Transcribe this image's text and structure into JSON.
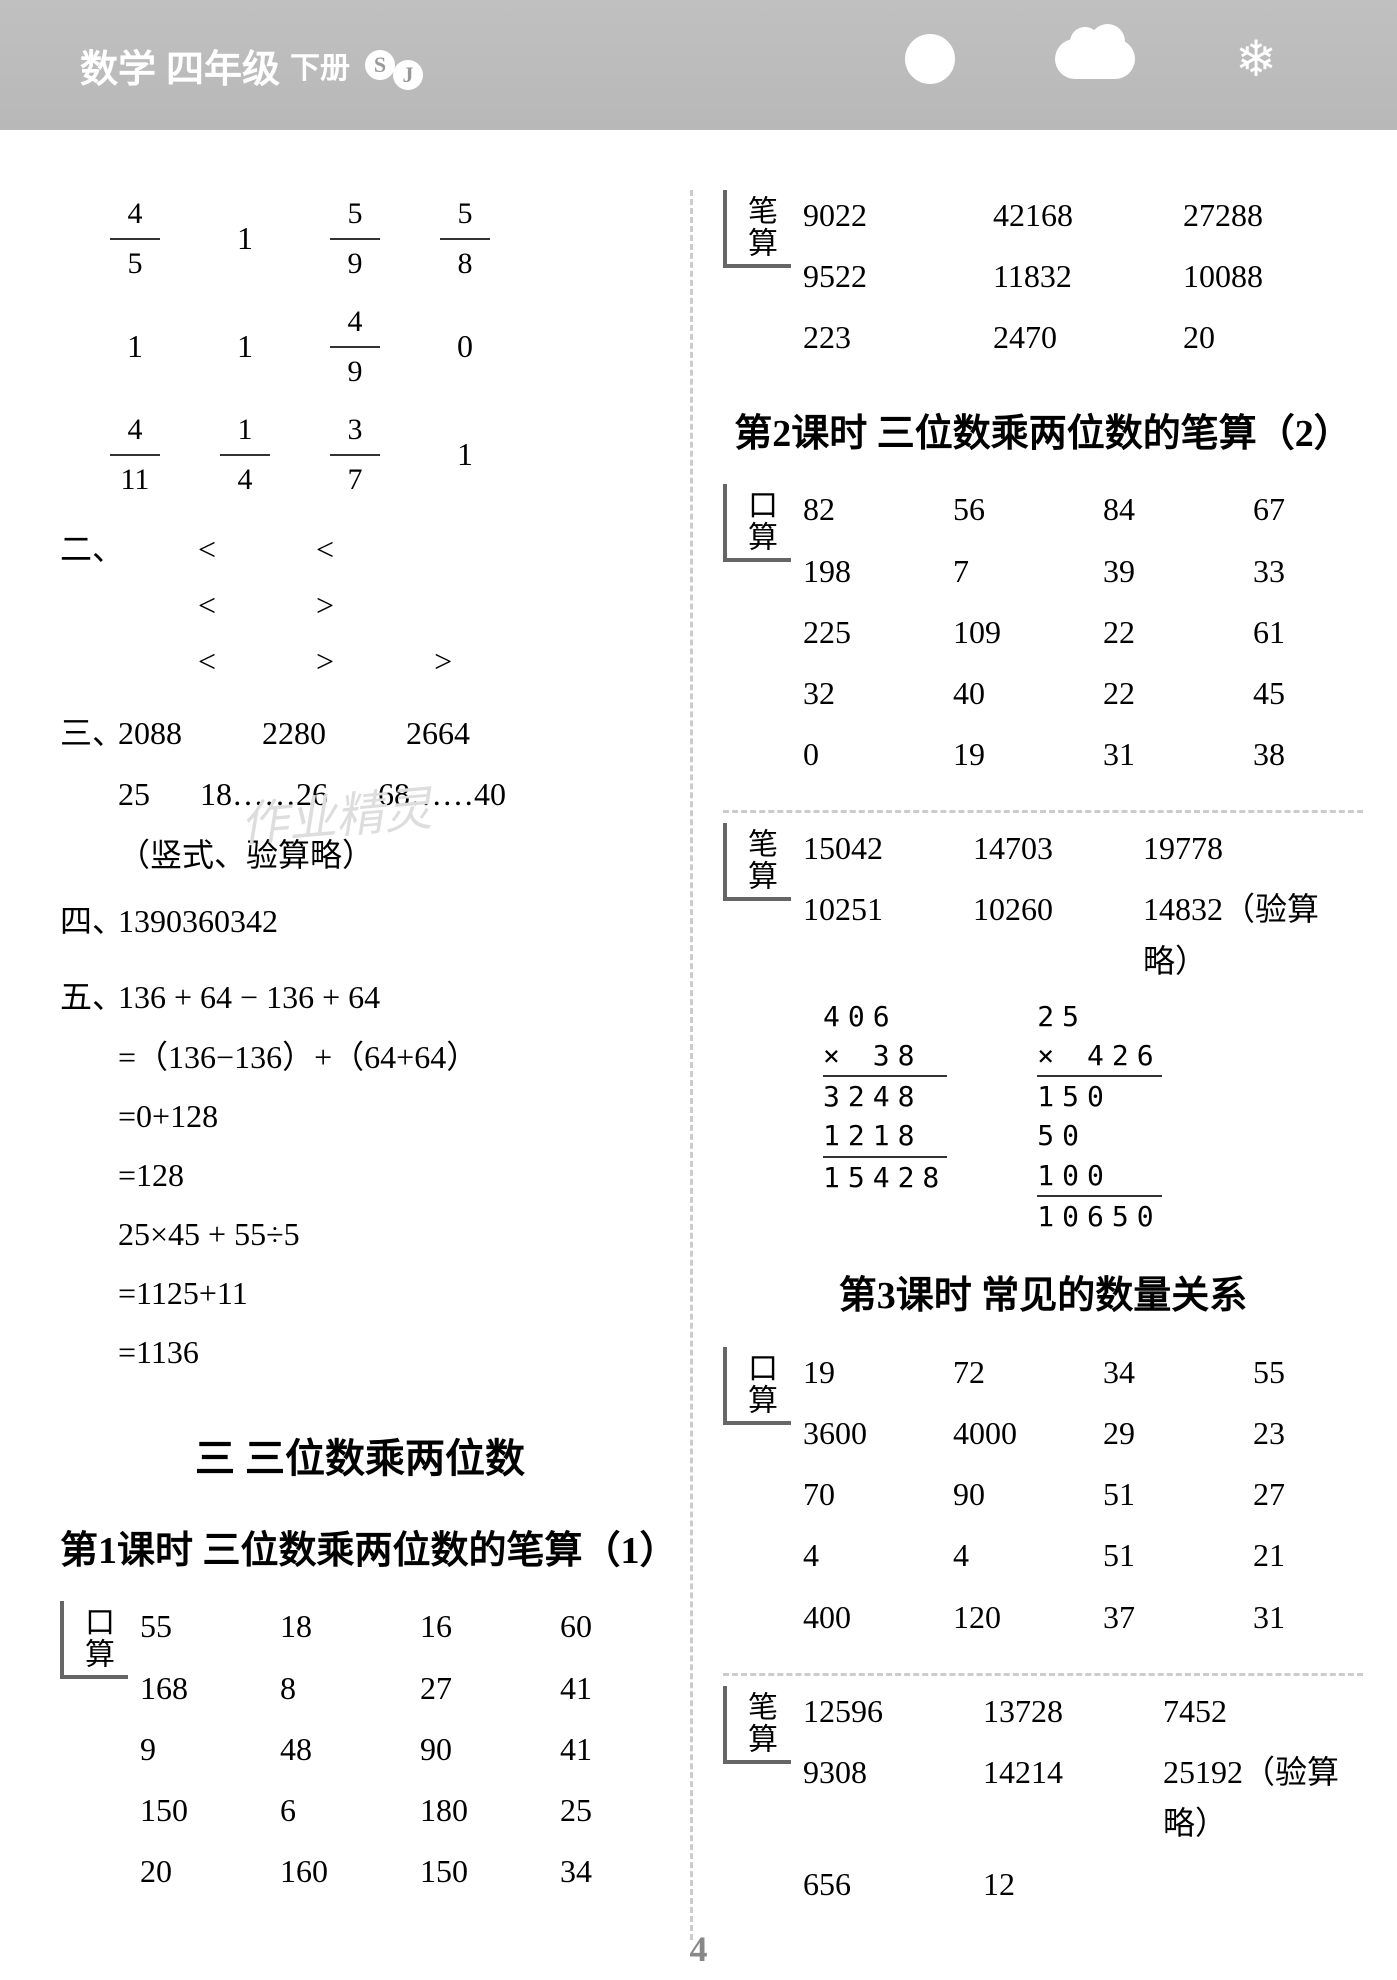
{
  "header": {
    "subject": "数学",
    "grade": "四年级",
    "volume": "下册",
    "badge_s": "S",
    "badge_j": "J"
  },
  "left": {
    "fracs": [
      [
        {
          "n": "4",
          "d": "5"
        },
        "1",
        {
          "n": "5",
          "d": "9"
        },
        {
          "n": "5",
          "d": "8"
        }
      ],
      [
        "1",
        "1",
        {
          "n": "4",
          "d": "9"
        },
        "0"
      ],
      [
        {
          "n": "4",
          "d": "11"
        },
        {
          "n": "1",
          "d": "4"
        },
        {
          "n": "3",
          "d": "7"
        },
        "1"
      ]
    ],
    "sec2_label": "二、",
    "cmp": [
      [
        "<",
        "<"
      ],
      [
        "<",
        ">"
      ],
      [
        "<",
        ">",
        ">"
      ]
    ],
    "sec3_label": "三、",
    "sec3_r1": [
      "2088",
      "2280",
      "2664"
    ],
    "sec3_r2": [
      "25",
      "18……26",
      "68……40"
    ],
    "sec3_note": "（竖式、验算略）",
    "sec4_label": "四、",
    "sec4": [
      "1390",
      "360",
      "342"
    ],
    "sec5_label": "五、",
    "eq": [
      "136 + 64 − 136 + 64",
      "=（136−136）+（64+64）",
      "=0+128",
      "=128",
      "  25×45 + 55÷5",
      "=1125+11",
      "=1136"
    ],
    "chapter": "三  三位数乘两位数",
    "lesson1": "第1课时  三位数乘两位数的笔算（1）",
    "kousuan_label": "口算",
    "kousuan": [
      [
        "55",
        "18",
        "16",
        "60"
      ],
      [
        "168",
        "8",
        "27",
        "41"
      ],
      [
        "9",
        "48",
        "90",
        "41"
      ],
      [
        "150",
        "6",
        "180",
        "25"
      ],
      [
        "20",
        "160",
        "150",
        "34"
      ]
    ]
  },
  "right": {
    "bisuan_label": "笔算",
    "bisuan1": [
      [
        "9022",
        "42168",
        "27288"
      ],
      [
        "9522",
        "11832",
        "10088"
      ],
      [
        "223",
        "2470",
        "20"
      ]
    ],
    "lesson2": "第2课时  三位数乘两位数的笔算（2）",
    "kousuan_label": "口算",
    "kousuan2": [
      [
        "82",
        "56",
        "84",
        "67"
      ],
      [
        "198",
        "7",
        "39",
        "33"
      ],
      [
        "225",
        "109",
        "22",
        "61"
      ],
      [
        "32",
        "40",
        "22",
        "45"
      ],
      [
        "0",
        "19",
        "31",
        "38"
      ]
    ],
    "bisuan2_r1": [
      "15042",
      "14703",
      "19778"
    ],
    "bisuan2_r2": [
      "10251",
      "10260",
      "14832（验算略）"
    ],
    "calc1": {
      "l1": "  406",
      "l2": "×  38",
      "l3": " 3248",
      "l4": "1218 ",
      "l5": "15428"
    },
    "calc2": {
      "l1": "   25",
      "l2": "× 426",
      "l3": "  150",
      "l4": "  50 ",
      "l5": " 100 ",
      "l6": "10650"
    },
    "lesson3": "第3课时  常见的数量关系",
    "kousuan3": [
      [
        "19",
        "72",
        "34",
        "55"
      ],
      [
        "3600",
        "4000",
        "29",
        "23"
      ],
      [
        "70",
        "90",
        "51",
        "27"
      ],
      [
        "4",
        "4",
        "51",
        "21"
      ],
      [
        "400",
        "120",
        "37",
        "31"
      ]
    ],
    "bisuan3": [
      [
        "12596",
        "13728",
        "7452"
      ],
      [
        "9308",
        "14214",
        "25192（验算略）"
      ],
      [
        "656",
        "12",
        ""
      ]
    ]
  },
  "page_num": "4"
}
